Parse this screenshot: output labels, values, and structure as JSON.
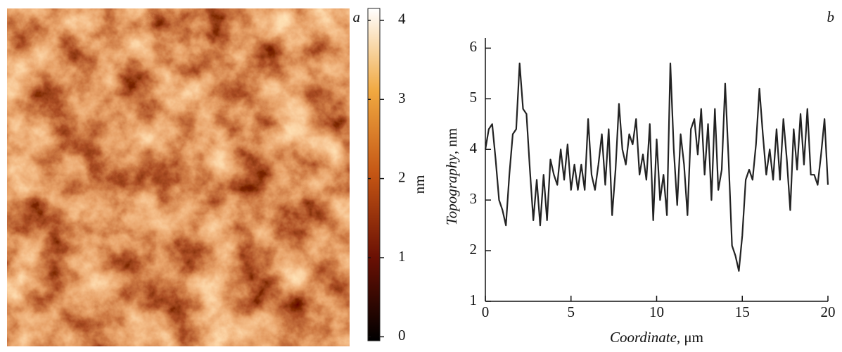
{
  "chart_data": [
    {
      "type": "image",
      "label": "a",
      "colorbar": {
        "label": "nm",
        "lim": [
          -0.05,
          4.15
        ],
        "ticks": [
          0,
          1,
          2,
          3,
          4
        ]
      }
    },
    {
      "type": "line",
      "label": "b",
      "xlabel": "Coordinate, μm",
      "ylabel": "Topography, nm",
      "xlim": [
        0,
        20
      ],
      "ylim": [
        1,
        6.2
      ],
      "xticks": [
        0,
        5,
        10,
        15,
        20
      ],
      "yticks": [
        1,
        2,
        3,
        4,
        5,
        6
      ],
      "x": [
        0,
        0.2,
        0.4,
        0.6,
        0.8,
        1,
        1.2,
        1.4,
        1.6,
        1.8,
        2,
        2.2,
        2.4,
        2.6,
        2.8,
        3,
        3.2,
        3.4,
        3.6,
        3.8,
        4,
        4.2,
        4.4,
        4.6,
        4.8,
        5,
        5.2,
        5.4,
        5.6,
        5.8,
        6,
        6.2,
        6.4,
        6.6,
        6.8,
        7,
        7.2,
        7.4,
        7.6,
        7.8,
        8,
        8.2,
        8.4,
        8.6,
        8.8,
        9,
        9.2,
        9.4,
        9.6,
        9.8,
        10,
        10.2,
        10.4,
        10.6,
        10.8,
        11,
        11.2,
        11.4,
        11.6,
        11.8,
        12,
        12.2,
        12.4,
        12.6,
        12.8,
        13,
        13.2,
        13.4,
        13.6,
        13.8,
        14,
        14.2,
        14.4,
        14.6,
        14.8,
        15,
        15.2,
        15.4,
        15.6,
        15.8,
        16,
        16.2,
        16.4,
        16.6,
        16.8,
        17,
        17.2,
        17.4,
        17.6,
        17.8,
        18,
        18.2,
        18.4,
        18.6,
        18.8,
        19,
        19.2,
        19.4,
        19.6,
        19.8,
        20
      ],
      "series": [
        {
          "color": "#222222",
          "values": [
            4.0,
            4.4,
            4.5,
            3.8,
            3.0,
            2.8,
            2.5,
            3.5,
            4.3,
            4.4,
            5.7,
            4.8,
            4.7,
            3.6,
            2.6,
            3.4,
            2.5,
            3.5,
            2.6,
            3.8,
            3.5,
            3.3,
            4.0,
            3.4,
            4.1,
            3.2,
            3.7,
            3.2,
            3.7,
            3.2,
            4.6,
            3.5,
            3.2,
            3.7,
            4.3,
            3.3,
            4.4,
            2.7,
            3.6,
            4.9,
            4.0,
            3.7,
            4.3,
            4.1,
            4.6,
            3.5,
            3.9,
            3.4,
            4.5,
            2.6,
            4.2,
            3.0,
            3.5,
            2.7,
            5.7,
            4.0,
            2.9,
            4.3,
            3.7,
            2.7,
            4.4,
            4.6,
            3.9,
            4.8,
            3.5,
            4.5,
            3.0,
            4.8,
            3.2,
            3.6,
            5.3,
            3.8,
            2.1,
            1.9,
            1.6,
            2.3,
            3.4,
            3.6,
            3.4,
            4.1,
            5.2,
            4.3,
            3.5,
            4.0,
            3.4,
            4.4,
            3.4,
            4.6,
            3.8,
            2.8,
            4.4,
            3.6,
            4.7,
            3.7,
            4.8,
            3.5,
            3.5,
            3.3,
            3.9,
            4.6,
            3.3
          ]
        }
      ]
    }
  ]
}
